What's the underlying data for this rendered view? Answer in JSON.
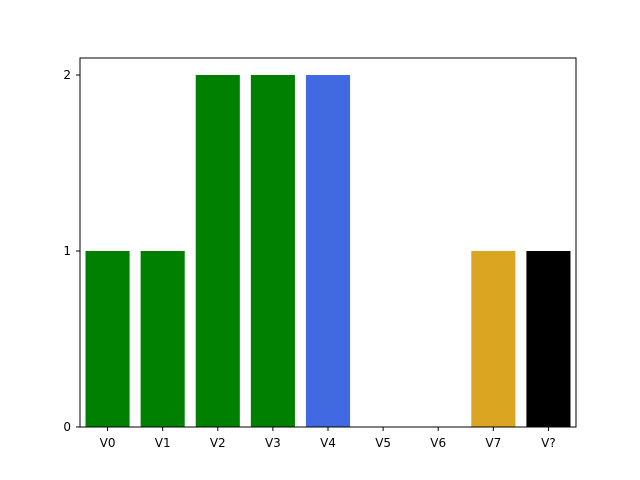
{
  "chart_data": {
    "type": "bar",
    "title": "",
    "xlabel": "",
    "ylabel": "",
    "categories": [
      "V0",
      "V1",
      "V2",
      "V3",
      "V4",
      "V5",
      "V6",
      "V7",
      "V?"
    ],
    "values": [
      1,
      1,
      2,
      2,
      2,
      0,
      0,
      1,
      1
    ],
    "colors": [
      "#008000",
      "#008000",
      "#008000",
      "#008000",
      "#4169e1",
      "#008000",
      "#008000",
      "#daa520",
      "#000000"
    ],
    "ylim": [
      0,
      2
    ],
    "yticks": [
      "0",
      "1",
      "2"
    ],
    "grid": false,
    "legend": "none"
  }
}
